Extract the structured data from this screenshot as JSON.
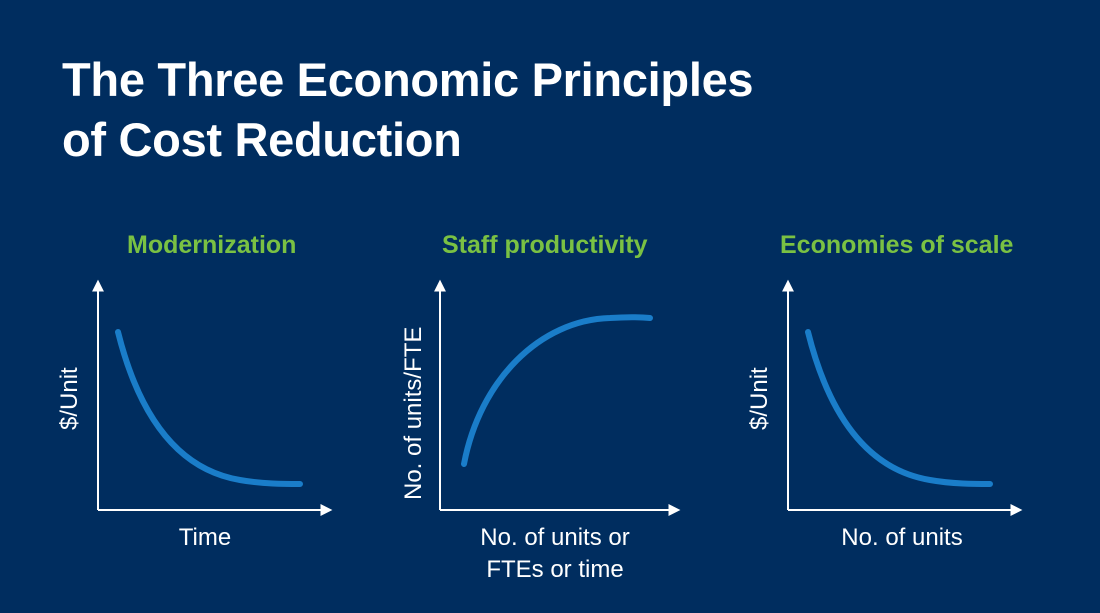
{
  "title": {
    "line1": "The Three Economic Principles",
    "line2": "of Cost Reduction"
  },
  "colors": {
    "background": "#002d5f",
    "heading": "#7ac143",
    "curve": "#1a7dc9",
    "axis": "#ffffff"
  },
  "panels": [
    {
      "heading": "Modernization",
      "ylabel": "$/Unit",
      "xlabel_lines": [
        "Time"
      ],
      "curve": "decreasing"
    },
    {
      "heading": "Staff productivity",
      "ylabel": "No. of units/FTE",
      "xlabel_lines": [
        "No. of units or",
        "FTEs or time"
      ],
      "curve": "increasing"
    },
    {
      "heading": "Economies of scale",
      "ylabel": "$/Unit",
      "xlabel_lines": [
        "No. of units"
      ],
      "curve": "decreasing"
    }
  ]
}
